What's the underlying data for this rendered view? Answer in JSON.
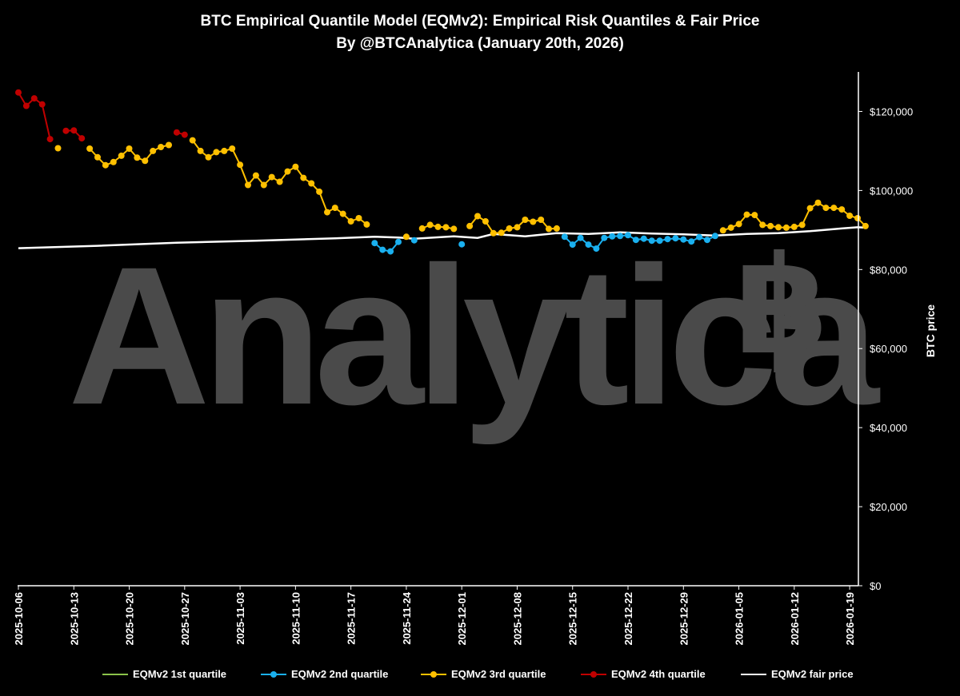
{
  "title_line1": "BTC Empirical Quantile Model (EQMv2): Empirical Risk Quantiles & Fair Price",
  "title_line2": "By @BTCAnalytica (January 20th, 2026)",
  "watermark": "Analytica",
  "watermark_symbol": "฿",
  "colors": {
    "background": "#000000",
    "q1": "#8bc34a",
    "q2": "#1ab0ef",
    "q3": "#ffc000",
    "q4": "#c00000",
    "fair": "#ffffff",
    "axis": "#ffffff"
  },
  "chart_data": {
    "type": "line",
    "ylabel": "BTC price",
    "ylim": [
      0,
      130000
    ],
    "yticks": [
      0,
      20000,
      40000,
      60000,
      80000,
      100000,
      120000
    ],
    "ytick_labels": [
      "$0",
      "$20,000",
      "$40,000",
      "$60,000",
      "$80,000",
      "$100,000",
      "$120,000"
    ],
    "x_start": "2025-10-06",
    "x_end": "2026-01-20",
    "xticks": [
      "2025-10-06",
      "2025-10-13",
      "2025-10-20",
      "2025-10-27",
      "2025-11-03",
      "2025-11-10",
      "2025-11-17",
      "2025-11-24",
      "2025-12-01",
      "2025-12-08",
      "2025-12-15",
      "2025-12-22",
      "2025-12-29",
      "2026-01-05",
      "2026-01-12",
      "2026-01-19"
    ],
    "day_index_note": "x values are days since 2025-10-06",
    "series": [
      {
        "name": "EQMv2 1st quartile",
        "key": "q1",
        "points": []
      },
      {
        "name": "EQMv2 2nd quartile",
        "key": "q2",
        "points": [
          [
            45,
            86700
          ],
          [
            46,
            85000
          ],
          [
            47,
            84600
          ],
          [
            48,
            87000
          ],
          [
            50,
            87400
          ],
          [
            56,
            86400
          ],
          [
            69,
            88300
          ],
          [
            70,
            86300
          ],
          [
            71,
            88000
          ],
          [
            72,
            86300
          ],
          [
            73,
            85300
          ],
          [
            74,
            88000
          ],
          [
            75,
            88400
          ],
          [
            76,
            88500
          ],
          [
            77,
            88700
          ],
          [
            78,
            87500
          ],
          [
            79,
            87800
          ],
          [
            80,
            87300
          ],
          [
            81,
            87300
          ],
          [
            82,
            87700
          ],
          [
            83,
            87900
          ],
          [
            84,
            87600
          ],
          [
            85,
            87100
          ],
          [
            86,
            88200
          ],
          [
            87,
            87500
          ],
          [
            88,
            88500
          ]
        ]
      },
      {
        "name": "EQMv2 3rd quartile",
        "key": "q3",
        "points": [
          [
            5,
            110700
          ],
          [
            9,
            110600
          ],
          [
            10,
            108400
          ],
          [
            11,
            106400
          ],
          [
            12,
            107200
          ],
          [
            13,
            108800
          ],
          [
            14,
            110600
          ],
          [
            15,
            108300
          ],
          [
            16,
            107500
          ],
          [
            17,
            110000
          ],
          [
            18,
            111000
          ],
          [
            19,
            111500
          ],
          [
            22,
            112700
          ],
          [
            23,
            110000
          ],
          [
            24,
            108400
          ],
          [
            25,
            109700
          ],
          [
            26,
            110000
          ],
          [
            27,
            110600
          ],
          [
            28,
            106500
          ],
          [
            29,
            101400
          ],
          [
            30,
            103800
          ],
          [
            31,
            101400
          ],
          [
            32,
            103400
          ],
          [
            33,
            102200
          ],
          [
            34,
            104800
          ],
          [
            35,
            106000
          ],
          [
            36,
            103200
          ],
          [
            37,
            101800
          ],
          [
            38,
            99700
          ],
          [
            39,
            94500
          ],
          [
            40,
            95600
          ],
          [
            41,
            94100
          ],
          [
            42,
            92200
          ],
          [
            43,
            93000
          ],
          [
            44,
            91400
          ],
          [
            49,
            88300
          ],
          [
            51,
            90400
          ],
          [
            52,
            91300
          ],
          [
            53,
            90800
          ],
          [
            54,
            90700
          ],
          [
            55,
            90300
          ],
          [
            57,
            91000
          ],
          [
            58,
            93500
          ],
          [
            59,
            92200
          ],
          [
            60,
            89200
          ],
          [
            61,
            89300
          ],
          [
            62,
            90400
          ],
          [
            63,
            90700
          ],
          [
            64,
            92600
          ],
          [
            65,
            92100
          ],
          [
            66,
            92600
          ],
          [
            67,
            90300
          ],
          [
            68,
            90400
          ],
          [
            89,
            89900
          ],
          [
            90,
            90600
          ],
          [
            91,
            91500
          ],
          [
            92,
            93900
          ],
          [
            93,
            93800
          ],
          [
            94,
            91300
          ],
          [
            95,
            91000
          ],
          [
            96,
            90700
          ],
          [
            97,
            90600
          ],
          [
            98,
            90800
          ],
          [
            99,
            91300
          ],
          [
            100,
            95500
          ],
          [
            101,
            96900
          ],
          [
            102,
            95600
          ],
          [
            103,
            95600
          ],
          [
            104,
            95200
          ],
          [
            105,
            93600
          ],
          [
            106,
            93000
          ],
          [
            107,
            91000
          ]
        ]
      },
      {
        "name": "EQMv2 4th quartile",
        "key": "q4",
        "points": [
          [
            0,
            124800
          ],
          [
            1,
            121400
          ],
          [
            2,
            123300
          ],
          [
            3,
            121800
          ],
          [
            4,
            113000
          ],
          [
            6,
            115100
          ],
          [
            7,
            115200
          ],
          [
            8,
            113200
          ],
          [
            20,
            114700
          ],
          [
            21,
            114100
          ]
        ]
      },
      {
        "name": "EQMv2 fair price",
        "key": "fair",
        "points": [
          [
            0,
            85400
          ],
          [
            10,
            86000
          ],
          [
            20,
            86800
          ],
          [
            30,
            87300
          ],
          [
            40,
            87900
          ],
          [
            45,
            88300
          ],
          [
            48,
            88100
          ],
          [
            50,
            87800
          ],
          [
            55,
            88400
          ],
          [
            58,
            88000
          ],
          [
            60,
            89000
          ],
          [
            64,
            88400
          ],
          [
            68,
            89200
          ],
          [
            72,
            89000
          ],
          [
            76,
            89400
          ],
          [
            80,
            89100
          ],
          [
            84,
            88900
          ],
          [
            88,
            88600
          ],
          [
            92,
            89000
          ],
          [
            96,
            89200
          ],
          [
            100,
            89700
          ],
          [
            104,
            90400
          ],
          [
            106,
            90700
          ],
          [
            107,
            90600
          ]
        ]
      }
    ]
  },
  "legend": [
    {
      "label": "EQMv2 1st quartile",
      "key": "q1",
      "marker": false
    },
    {
      "label": "EQMv2 2nd quartile",
      "key": "q2",
      "marker": true
    },
    {
      "label": "EQMv2 3rd quartile",
      "key": "q3",
      "marker": true
    },
    {
      "label": "EQMv2 4th quartile",
      "key": "q4",
      "marker": true
    },
    {
      "label": "EQMv2 fair price",
      "key": "fair",
      "marker": false
    }
  ]
}
